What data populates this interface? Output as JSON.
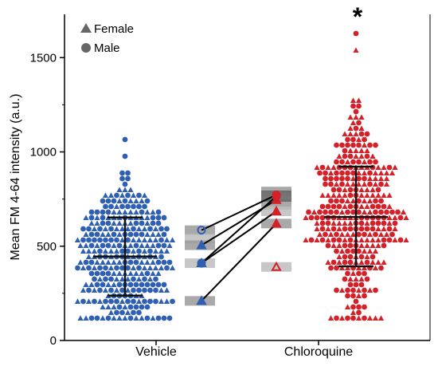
{
  "chart_data": {
    "type": "scatter",
    "subtype": "beeswarm with mean ± SD and per-animal paired means",
    "ylabel": "Mean FM 4-64 intensity (a.u.)",
    "xlabel": "",
    "categories": [
      "Vehicle",
      "Chloroquine"
    ],
    "ylim": [
      0,
      1700
    ],
    "yticks": [
      0,
      500,
      1000,
      1500
    ],
    "legend": {
      "placement": "top-left",
      "entries": [
        {
          "label": "Female",
          "marker": "triangle"
        },
        {
          "label": "Male",
          "marker": "circle"
        }
      ]
    },
    "annotation": "*",
    "annotation_target": "Chloroquine",
    "series": [
      {
        "category": "Vehicle",
        "color": "#2f5fb3",
        "mean": 445,
        "sd_low": 238,
        "sd_high": 652,
        "min": 105,
        "max": 1075
      },
      {
        "category": "Chloroquine",
        "color": "#d42029",
        "mean": 655,
        "sd_low": 393,
        "sd_high": 922,
        "min": 120,
        "max": 1640
      }
    ],
    "animal_means": {
      "pairs": [
        {
          "vehicle": 585,
          "chloroquine": 772,
          "sex": "male"
        },
        {
          "vehicle": 505,
          "chloroquine": 745,
          "sex": "female"
        },
        {
          "vehicle": 410,
          "chloroquine": 765,
          "sex": "male"
        },
        {
          "vehicle": 410,
          "chloroquine": 685,
          "sex": "female"
        },
        {
          "vehicle": 210,
          "chloroquine": 620,
          "sex": "female"
        }
      ],
      "unpaired": [
        {
          "group": "Chloroquine",
          "value": 390,
          "sex": "female"
        }
      ]
    },
    "grey_bars": {
      "Vehicle": [
        585,
        540,
        505,
        410,
        210
      ],
      "Chloroquine": [
        790,
        760,
        720,
        685,
        620,
        390
      ]
    }
  }
}
